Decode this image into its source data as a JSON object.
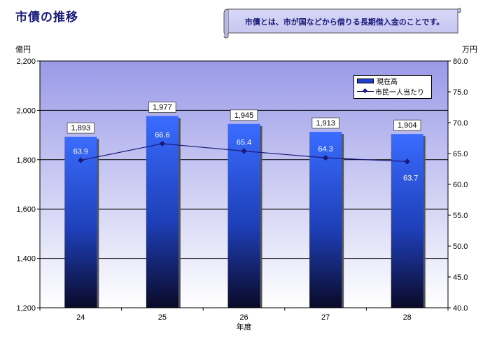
{
  "page": {
    "title": "市債の推移",
    "note": "市債とは、市が国などから借りる長期借入金のことです。"
  },
  "chart_data": {
    "type": "bar",
    "categories": [
      "24",
      "25",
      "26",
      "27",
      "28"
    ],
    "xlabel": "年度",
    "series": [
      {
        "name": "現在高",
        "type": "bar",
        "axis": "left",
        "values": [
          1893,
          1977,
          1945,
          1913,
          1904
        ],
        "labels": [
          "1,893",
          "1,977",
          "1,945",
          "1,913",
          "1,904"
        ]
      },
      {
        "name": "市民一人当たり",
        "type": "line",
        "axis": "right",
        "values": [
          63.9,
          66.6,
          65.4,
          64.3,
          63.7
        ],
        "labels": [
          "63.9",
          "66.6",
          "65.4",
          "64.3",
          "63.7"
        ]
      }
    ],
    "y_left": {
      "unit": "億円",
      "min": 1200,
      "max": 2200,
      "ticks": [
        1200,
        1400,
        1600,
        1800,
        2000,
        2200
      ],
      "tick_labels": [
        "1,200",
        "1,400",
        "1,600",
        "1,800",
        "2,000",
        "2,200"
      ]
    },
    "y_right": {
      "unit": "万円",
      "min": 40,
      "max": 80,
      "ticks": [
        40,
        45,
        50,
        55,
        60,
        65,
        70,
        75,
        80
      ],
      "tick_labels": [
        "40.0",
        "45.0",
        "50.0",
        "55.0",
        "60.0",
        "65.0",
        "70.0",
        "75.0",
        "80.0"
      ]
    },
    "grid": true,
    "legend_position": "top-right",
    "colors": {
      "bar_top": "#3a6cff",
      "bar_bottom": "#0a0a28",
      "line": "#1a1a7a",
      "plot_bg_top": "#9a9ae8",
      "plot_bg_bottom": "#ffffff"
    }
  }
}
